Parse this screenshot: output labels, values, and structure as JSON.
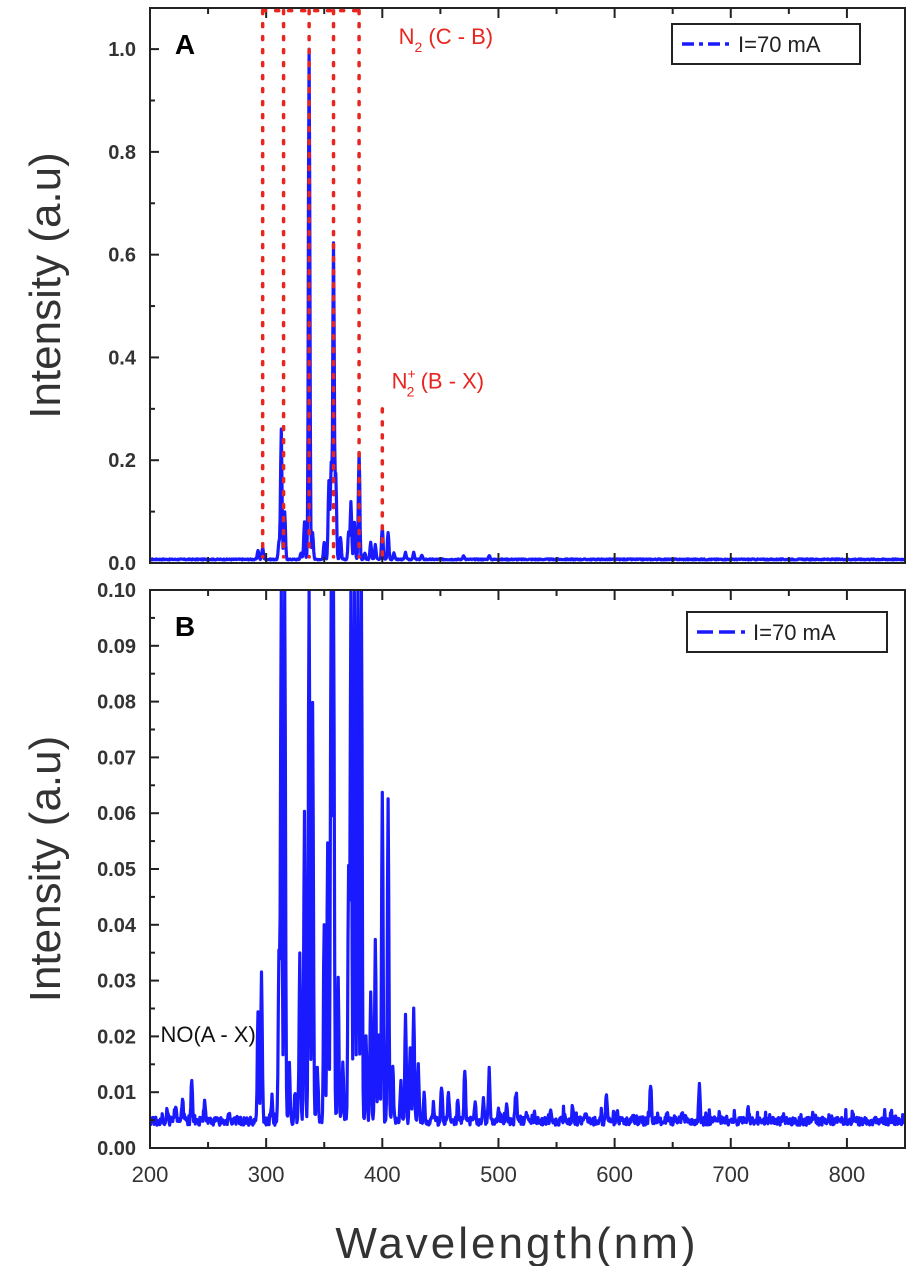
{
  "chart_data": [
    {
      "type": "line",
      "panel_label": "A",
      "xlabel": "Wavelength(nm)",
      "ylabel": "Intensity (a.u)",
      "xlim": [
        200,
        850
      ],
      "ylim": [
        0,
        1.08
      ],
      "x_ticks": [
        200,
        300,
        400,
        500,
        600,
        700,
        800
      ],
      "y_ticks": [
        0.0,
        0.2,
        0.4,
        0.6,
        0.8,
        1.0
      ],
      "y_tick_labels": [
        "0.0",
        "0.2",
        "0.4",
        "0.6",
        "0.8",
        "1.0"
      ],
      "legend": {
        "label": "I=70 mA",
        "position": "top-right"
      },
      "series": [
        {
          "name": "I=70 mA",
          "color": "#1a1aff",
          "baseline": 0.007,
          "peaks": [
            [
              293,
              0.025
            ],
            [
              297,
              0.03
            ],
            [
              311,
              0.04
            ],
            [
              313,
              0.26
            ],
            [
              316,
              0.1
            ],
            [
              330,
              0.02
            ],
            [
              333,
              0.08
            ],
            [
              337,
              1.0
            ],
            [
              340,
              0.06
            ],
            [
              350,
              0.04
            ],
            [
              354,
              0.16
            ],
            [
              356,
              0.19
            ],
            [
              358,
              0.62
            ],
            [
              360,
              0.17
            ],
            [
              364,
              0.05
            ],
            [
              371,
              0.06
            ],
            [
              373,
              0.12
            ],
            [
              376,
              0.08
            ],
            [
              380,
              0.215
            ],
            [
              385,
              0.02
            ],
            [
              390,
              0.04
            ],
            [
              394,
              0.035
            ],
            [
              400,
              0.07
            ],
            [
              405,
              0.06
            ],
            [
              410,
              0.02
            ],
            [
              420,
              0.02
            ],
            [
              427,
              0.02
            ],
            [
              434,
              0.015
            ],
            [
              470,
              0.015
            ],
            [
              492,
              0.015
            ]
          ]
        }
      ],
      "annotations": [
        {
          "text": "N",
          "sub": "2",
          "rest": " (C - B)",
          "color": "#e8251f",
          "x": 414,
          "y": 1.01
        },
        {
          "text": "N",
          "sub": "2",
          "sup": "+",
          "rest": " (B - X)",
          "color": "#e8251f",
          "x": 408,
          "y": 0.34
        }
      ],
      "dotted_lines": {
        "color": "#e8251f",
        "x": [
          297,
          315,
          337,
          358,
          380,
          400
        ],
        "bracket_y": 1.075,
        "bracket_x": [
          297,
          380
        ]
      }
    },
    {
      "type": "line",
      "panel_label": "B",
      "xlabel": "Wavelength(nm)",
      "ylabel": "Intensity (a.u)",
      "xlim": [
        200,
        850
      ],
      "ylim": [
        0,
        0.1
      ],
      "x_ticks": [
        200,
        300,
        400,
        500,
        600,
        700,
        800
      ],
      "y_ticks": [
        0.0,
        0.01,
        0.02,
        0.03,
        0.04,
        0.05,
        0.06,
        0.07,
        0.08,
        0.09,
        0.1
      ],
      "y_tick_labels": [
        "0.00",
        "0.01",
        "0.02",
        "0.03",
        "0.04",
        "0.05",
        "0.06",
        "0.07",
        "0.08",
        "0.09",
        "0.10"
      ],
      "legend": {
        "label": "I=70 mA",
        "position": "top-right"
      },
      "series": [
        {
          "name": "I=70 mA",
          "color": "#1a1aff",
          "baseline": 0.0048,
          "peaks": [
            [
              215,
              0.007
            ],
            [
              222,
              0.008
            ],
            [
              228,
              0.009
            ],
            [
              236,
              0.012
            ],
            [
              247,
              0.008
            ],
            [
              268,
              0.006
            ],
            [
              293,
              0.024
            ],
            [
              296,
              0.031
            ],
            [
              305,
              0.009
            ],
            [
              311,
              0.035
            ],
            [
              313,
              0.1
            ],
            [
              316,
              0.1
            ],
            [
              320,
              0.015
            ],
            [
              325,
              0.01
            ],
            [
              329,
              0.035
            ],
            [
              333,
              0.06
            ],
            [
              337,
              0.1
            ],
            [
              340,
              0.08
            ],
            [
              344,
              0.015
            ],
            [
              350,
              0.04
            ],
            [
              353,
              0.055
            ],
            [
              356,
              0.1
            ],
            [
              358,
              0.1
            ],
            [
              362,
              0.03
            ],
            [
              366,
              0.015
            ],
            [
              371,
              0.05
            ],
            [
              373,
              0.1
            ],
            [
              376,
              0.1
            ],
            [
              379,
              0.1
            ],
            [
              382,
              0.1
            ],
            [
              386,
              0.02
            ],
            [
              390,
              0.028
            ],
            [
              394,
              0.037
            ],
            [
              397,
              0.02
            ],
            [
              400,
              0.064
            ],
            [
              405,
              0.062
            ],
            [
              409,
              0.015
            ],
            [
              416,
              0.012
            ],
            [
              420,
              0.024
            ],
            [
              424,
              0.018
            ],
            [
              427,
              0.025
            ],
            [
              431,
              0.015
            ],
            [
              436,
              0.01
            ],
            [
              444,
              0.008
            ],
            [
              451,
              0.011
            ],
            [
              457,
              0.01
            ],
            [
              465,
              0.008
            ],
            [
              471,
              0.014
            ],
            [
              480,
              0.008
            ],
            [
              487,
              0.009
            ],
            [
              492,
              0.014
            ],
            [
              500,
              0.007
            ],
            [
              507,
              0.008
            ],
            [
              515,
              0.01
            ],
            [
              524,
              0.007
            ],
            [
              531,
              0.006
            ],
            [
              545,
              0.007
            ],
            [
              557,
              0.006
            ],
            [
              564,
              0.007
            ],
            [
              575,
              0.006
            ],
            [
              593,
              0.01
            ],
            [
              602,
              0.007
            ],
            [
              616,
              0.006
            ],
            [
              631,
              0.0115
            ],
            [
              645,
              0.006
            ],
            [
              658,
              0.006
            ],
            [
              673,
              0.011
            ],
            [
              690,
              0.006
            ],
            [
              715,
              0.007
            ],
            [
              745,
              0.006
            ],
            [
              772,
              0.006
            ],
            [
              805,
              0.006
            ],
            [
              838,
              0.006
            ]
          ]
        }
      ],
      "annotations": [
        {
          "text": "NO(A - X)",
          "color": "#111111",
          "x": 209,
          "y": 0.019
        }
      ]
    }
  ]
}
